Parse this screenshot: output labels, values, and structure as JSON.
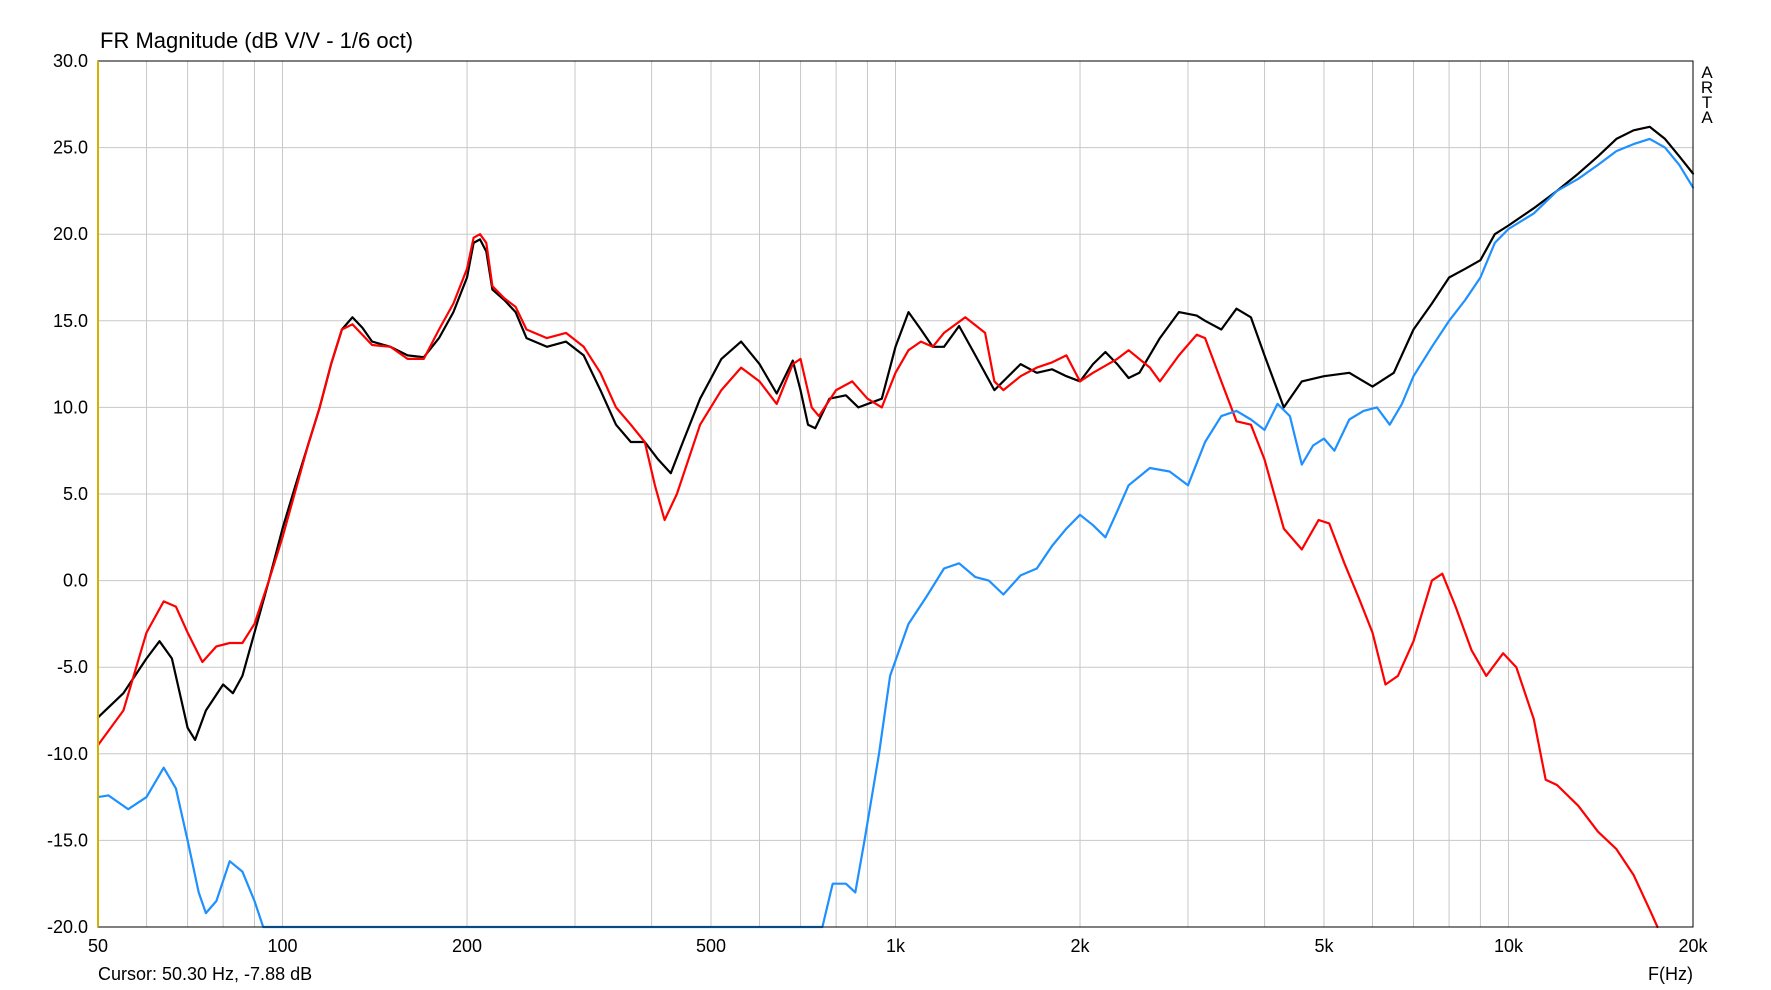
{
  "chart_data": {
    "type": "line",
    "title": "FR Magnitude (dB V/V - 1/6 oct)",
    "xlabel": "F(Hz)",
    "ylabel": "",
    "xscale": "log",
    "xlim": [
      50,
      20000
    ],
    "ylim": [
      -20,
      30
    ],
    "yticks": [
      "30.0",
      "25.0",
      "20.0",
      "15.0",
      "10.0",
      "5.0",
      "0.0",
      "-5.0",
      "-10.0",
      "-15.0",
      "-20.0"
    ],
    "xticks": [
      {
        "value": 50,
        "label": "50"
      },
      {
        "value": 100,
        "label": "100"
      },
      {
        "value": 200,
        "label": "200"
      },
      {
        "value": 500,
        "label": "500"
      },
      {
        "value": 1000,
        "label": "1k"
      },
      {
        "value": 2000,
        "label": "2k"
      },
      {
        "value": 5000,
        "label": "5k"
      },
      {
        "value": 10000,
        "label": "10k"
      },
      {
        "value": 20000,
        "label": "20k"
      }
    ],
    "grid": true,
    "cursor_text": "Cursor: 50.30 Hz, -7.88 dB",
    "watermark": [
      "A",
      "R",
      "T",
      "A"
    ],
    "series": [
      {
        "color": "#000000",
        "points": [
          [
            50,
            -7.9
          ],
          [
            55,
            -6.5
          ],
          [
            60,
            -4.5
          ],
          [
            63,
            -3.5
          ],
          [
            66,
            -4.5
          ],
          [
            70,
            -8.5
          ],
          [
            72,
            -9.2
          ],
          [
            75,
            -7.5
          ],
          [
            80,
            -6
          ],
          [
            83,
            -6.5
          ],
          [
            86,
            -5.5
          ],
          [
            90,
            -3
          ],
          [
            95,
            0
          ],
          [
            100,
            3
          ],
          [
            105,
            5.5
          ],
          [
            110,
            7.8
          ],
          [
            115,
            10
          ],
          [
            120,
            12.5
          ],
          [
            125,
            14.5
          ],
          [
            130,
            15.2
          ],
          [
            135,
            14.6
          ],
          [
            140,
            13.8
          ],
          [
            150,
            13.5
          ],
          [
            160,
            13
          ],
          [
            170,
            12.9
          ],
          [
            180,
            14
          ],
          [
            190,
            15.5
          ],
          [
            200,
            17.5
          ],
          [
            205,
            19.5
          ],
          [
            210,
            19.7
          ],
          [
            215,
            19
          ],
          [
            220,
            16.8
          ],
          [
            230,
            16.2
          ],
          [
            240,
            15.5
          ],
          [
            250,
            14
          ],
          [
            270,
            13.5
          ],
          [
            290,
            13.8
          ],
          [
            310,
            13
          ],
          [
            330,
            11
          ],
          [
            350,
            9
          ],
          [
            370,
            8
          ],
          [
            390,
            8
          ],
          [
            410,
            7
          ],
          [
            430,
            6.2
          ],
          [
            450,
            8
          ],
          [
            480,
            10.5
          ],
          [
            520,
            12.8
          ],
          [
            560,
            13.8
          ],
          [
            600,
            12.5
          ],
          [
            640,
            10.8
          ],
          [
            680,
            12.7
          ],
          [
            700,
            11
          ],
          [
            720,
            9
          ],
          [
            740,
            8.8
          ],
          [
            780,
            10.5
          ],
          [
            830,
            10.7
          ],
          [
            870,
            10
          ],
          [
            950,
            10.5
          ],
          [
            1000,
            13.5
          ],
          [
            1050,
            15.5
          ],
          [
            1100,
            14.5
          ],
          [
            1150,
            13.5
          ],
          [
            1200,
            13.5
          ],
          [
            1270,
            14.7
          ],
          [
            1350,
            13
          ],
          [
            1450,
            11
          ],
          [
            1600,
            12.5
          ],
          [
            1700,
            12
          ],
          [
            1800,
            12.2
          ],
          [
            1900,
            11.8
          ],
          [
            2000,
            11.5
          ],
          [
            2100,
            12.5
          ],
          [
            2200,
            13.2
          ],
          [
            2300,
            12.5
          ],
          [
            2400,
            11.7
          ],
          [
            2500,
            12
          ],
          [
            2700,
            14
          ],
          [
            2900,
            15.5
          ],
          [
            3100,
            15.3
          ],
          [
            3200,
            15
          ],
          [
            3400,
            14.5
          ],
          [
            3600,
            15.7
          ],
          [
            3800,
            15.2
          ],
          [
            4000,
            13
          ],
          [
            4300,
            10
          ],
          [
            4600,
            11.5
          ],
          [
            5000,
            11.8
          ],
          [
            5500,
            12
          ],
          [
            6000,
            11.2
          ],
          [
            6500,
            12
          ],
          [
            7000,
            14.5
          ],
          [
            7500,
            16
          ],
          [
            8000,
            17.5
          ],
          [
            8500,
            18
          ],
          [
            9000,
            18.5
          ],
          [
            9500,
            20
          ],
          [
            10000,
            20.5
          ],
          [
            11000,
            21.5
          ],
          [
            12000,
            22.5
          ],
          [
            13000,
            23.5
          ],
          [
            14000,
            24.5
          ],
          [
            15000,
            25.5
          ],
          [
            16000,
            26
          ],
          [
            17000,
            26.2
          ],
          [
            18000,
            25.5
          ],
          [
            19000,
            24.5
          ],
          [
            20000,
            23.5
          ]
        ]
      },
      {
        "color": "#ff0000",
        "points": [
          [
            50,
            -9.5
          ],
          [
            55,
            -7.5
          ],
          [
            60,
            -3
          ],
          [
            64,
            -1.2
          ],
          [
            67,
            -1.5
          ],
          [
            70,
            -3
          ],
          [
            74,
            -4.7
          ],
          [
            78,
            -3.8
          ],
          [
            82,
            -3.6
          ],
          [
            86,
            -3.6
          ],
          [
            90,
            -2.5
          ],
          [
            95,
            0
          ],
          [
            100,
            2.5
          ],
          [
            105,
            5.2
          ],
          [
            110,
            7.8
          ],
          [
            115,
            10
          ],
          [
            120,
            12.5
          ],
          [
            125,
            14.5
          ],
          [
            130,
            14.8
          ],
          [
            140,
            13.6
          ],
          [
            150,
            13.5
          ],
          [
            160,
            12.8
          ],
          [
            170,
            12.8
          ],
          [
            180,
            14.5
          ],
          [
            190,
            16
          ],
          [
            200,
            18
          ],
          [
            205,
            19.8
          ],
          [
            210,
            20
          ],
          [
            215,
            19.5
          ],
          [
            220,
            17
          ],
          [
            230,
            16.3
          ],
          [
            240,
            15.8
          ],
          [
            250,
            14.5
          ],
          [
            270,
            14
          ],
          [
            290,
            14.3
          ],
          [
            310,
            13.5
          ],
          [
            330,
            12
          ],
          [
            350,
            10
          ],
          [
            370,
            9
          ],
          [
            390,
            8
          ],
          [
            405,
            5.5
          ],
          [
            420,
            3.5
          ],
          [
            440,
            5
          ],
          [
            480,
            9
          ],
          [
            520,
            11
          ],
          [
            560,
            12.3
          ],
          [
            600,
            11.5
          ],
          [
            640,
            10.2
          ],
          [
            680,
            12.5
          ],
          [
            700,
            12.8
          ],
          [
            730,
            10
          ],
          [
            750,
            9.5
          ],
          [
            800,
            11
          ],
          [
            850,
            11.5
          ],
          [
            900,
            10.5
          ],
          [
            950,
            10
          ],
          [
            1000,
            12
          ],
          [
            1050,
            13.3
          ],
          [
            1100,
            13.8
          ],
          [
            1150,
            13.5
          ],
          [
            1200,
            14.3
          ],
          [
            1300,
            15.2
          ],
          [
            1400,
            14.3
          ],
          [
            1450,
            11.5
          ],
          [
            1500,
            11
          ],
          [
            1600,
            11.8
          ],
          [
            1700,
            12.3
          ],
          [
            1800,
            12.6
          ],
          [
            1900,
            13
          ],
          [
            2000,
            11.5
          ],
          [
            2100,
            12
          ],
          [
            2300,
            12.8
          ],
          [
            2400,
            13.3
          ],
          [
            2600,
            12.3
          ],
          [
            2700,
            11.5
          ],
          [
            2900,
            13
          ],
          [
            3100,
            14.2
          ],
          [
            3200,
            14
          ],
          [
            3400,
            11.5
          ],
          [
            3600,
            9.2
          ],
          [
            3800,
            9
          ],
          [
            4000,
            7
          ],
          [
            4300,
            3
          ],
          [
            4600,
            1.8
          ],
          [
            4900,
            3.5
          ],
          [
            5100,
            3.3
          ],
          [
            5400,
            1
          ],
          [
            5700,
            -1
          ],
          [
            6000,
            -3
          ],
          [
            6300,
            -6
          ],
          [
            6600,
            -5.5
          ],
          [
            7000,
            -3.5
          ],
          [
            7500,
            0
          ],
          [
            7800,
            0.4
          ],
          [
            8200,
            -1.5
          ],
          [
            8700,
            -4
          ],
          [
            9200,
            -5.5
          ],
          [
            9800,
            -4.2
          ],
          [
            10300,
            -5
          ],
          [
            11000,
            -8
          ],
          [
            11500,
            -11.5
          ],
          [
            12000,
            -11.8
          ],
          [
            13000,
            -13
          ],
          [
            14000,
            -14.5
          ],
          [
            15000,
            -15.5
          ],
          [
            16000,
            -17
          ],
          [
            17000,
            -19
          ],
          [
            17500,
            -20
          ]
        ]
      },
      {
        "color": "#1e90ff",
        "points": [
          [
            50,
            -12.5
          ],
          [
            52,
            -12.4
          ],
          [
            56,
            -13.2
          ],
          [
            60,
            -12.5
          ],
          [
            64,
            -10.8
          ],
          [
            67,
            -12
          ],
          [
            70,
            -15
          ],
          [
            73,
            -18
          ],
          [
            75,
            -19.2
          ],
          [
            78,
            -18.5
          ],
          [
            82,
            -16.2
          ],
          [
            86,
            -16.8
          ],
          [
            90,
            -18.5
          ],
          [
            93,
            -20
          ],
          [
            760,
            -20
          ],
          [
            790,
            -17.5
          ],
          [
            830,
            -17.5
          ],
          [
            860,
            -18
          ],
          [
            890,
            -15
          ],
          [
            940,
            -10
          ],
          [
            980,
            -5.5
          ],
          [
            1050,
            -2.5
          ],
          [
            1120,
            -1
          ],
          [
            1200,
            0.7
          ],
          [
            1270,
            1
          ],
          [
            1350,
            0.2
          ],
          [
            1420,
            0
          ],
          [
            1500,
            -0.8
          ],
          [
            1600,
            0.3
          ],
          [
            1700,
            0.7
          ],
          [
            1800,
            2
          ],
          [
            1900,
            3
          ],
          [
            2000,
            3.8
          ],
          [
            2100,
            3.2
          ],
          [
            2200,
            2.5
          ],
          [
            2300,
            4
          ],
          [
            2400,
            5.5
          ],
          [
            2600,
            6.5
          ],
          [
            2800,
            6.3
          ],
          [
            3000,
            5.5
          ],
          [
            3200,
            8
          ],
          [
            3400,
            9.5
          ],
          [
            3600,
            9.8
          ],
          [
            3800,
            9.3
          ],
          [
            4000,
            8.7
          ],
          [
            4200,
            10.2
          ],
          [
            4400,
            9.5
          ],
          [
            4600,
            6.7
          ],
          [
            4800,
            7.8
          ],
          [
            5000,
            8.2
          ],
          [
            5200,
            7.5
          ],
          [
            5500,
            9.3
          ],
          [
            5800,
            9.8
          ],
          [
            6100,
            10
          ],
          [
            6400,
            9
          ],
          [
            6700,
            10.2
          ],
          [
            7000,
            11.8
          ],
          [
            7500,
            13.5
          ],
          [
            8000,
            15
          ],
          [
            8500,
            16.2
          ],
          [
            9000,
            17.5
          ],
          [
            9500,
            19.5
          ],
          [
            10000,
            20.3
          ],
          [
            11000,
            21.2
          ],
          [
            12000,
            22.5
          ],
          [
            13000,
            23.2
          ],
          [
            14000,
            24
          ],
          [
            15000,
            24.8
          ],
          [
            16000,
            25.2
          ],
          [
            17000,
            25.5
          ],
          [
            18000,
            25
          ],
          [
            19000,
            24
          ],
          [
            20000,
            22.7
          ]
        ]
      }
    ]
  }
}
